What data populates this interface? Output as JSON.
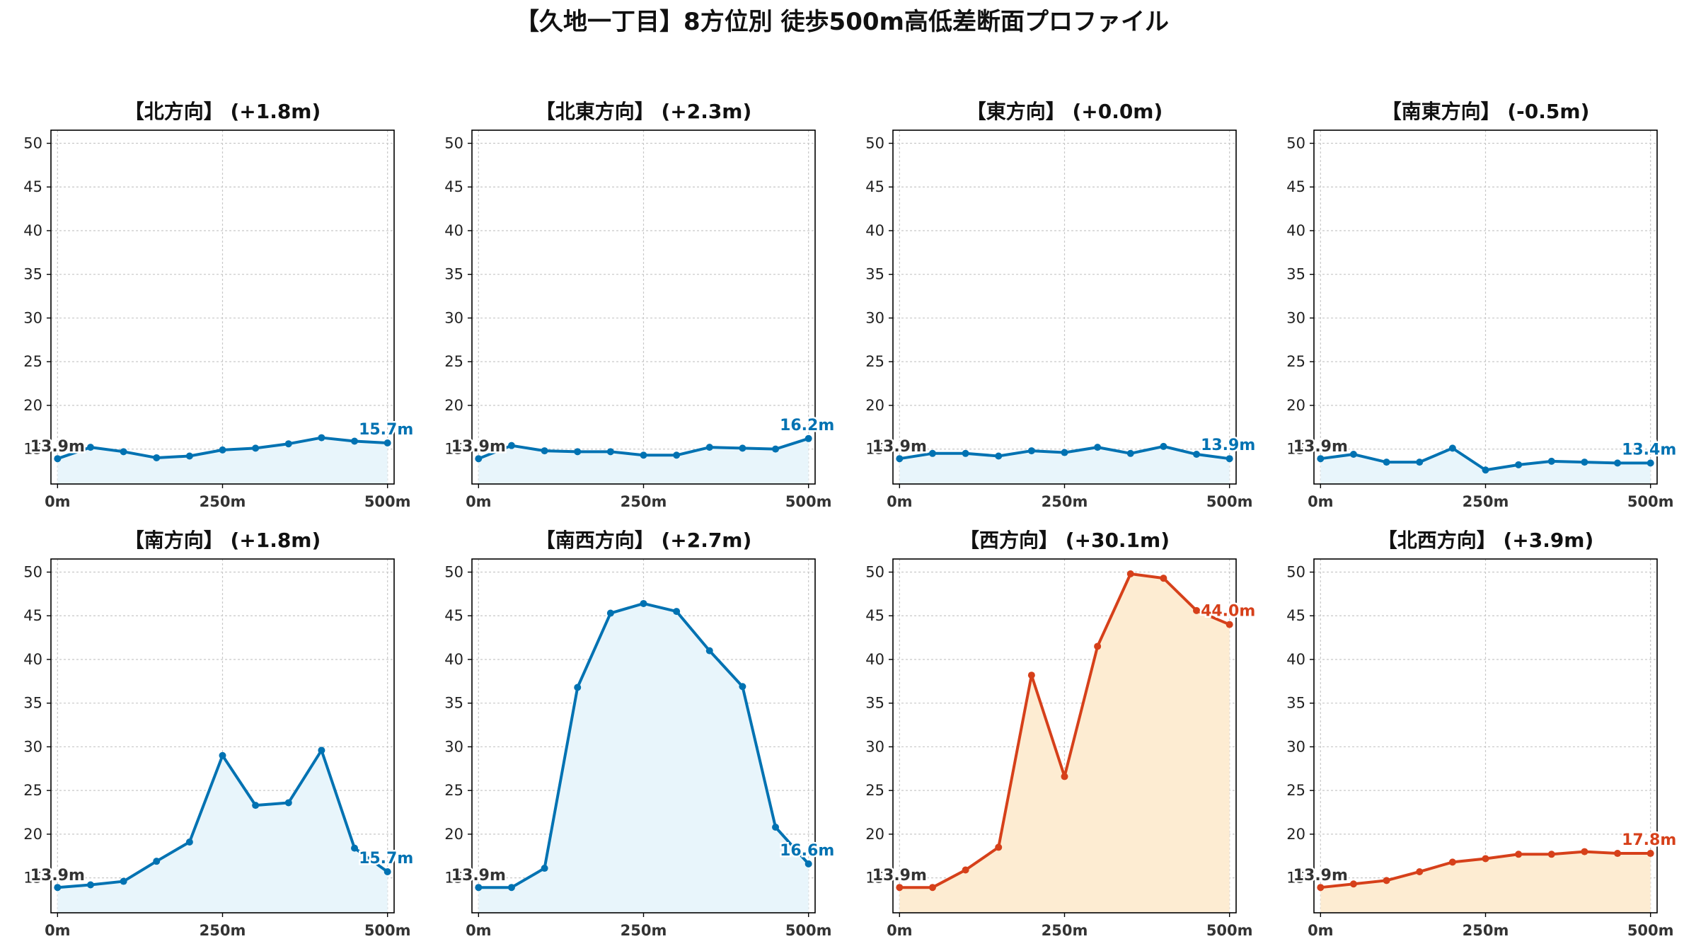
{
  "title": "【久地一丁目】8方位別 徒歩500m高低差断面プロファイル",
  "colors": {
    "blue": "#0072b2",
    "blue_fill": "#e8f5fb",
    "red": "#d6401a",
    "red_fill": "#fdecd2",
    "axis": "#000000",
    "grid": "#c8c8c8",
    "start_label": "#333333"
  },
  "chart_data": [
    {
      "type": "area",
      "title": "【北方向】 (+1.8m)",
      "color": "blue",
      "x": [
        0,
        50,
        100,
        150,
        200,
        250,
        300,
        350,
        400,
        450,
        500
      ],
      "xticks": [
        0,
        250,
        500
      ],
      "xtick_labels": [
        "0m",
        "250m",
        "500m"
      ],
      "xlim": [
        -10,
        510
      ],
      "yticks": [
        15,
        20,
        25,
        30,
        35,
        40,
        45,
        50
      ],
      "ytick_labels": [
        "15",
        "20",
        "25",
        "30",
        "35",
        "40",
        "45",
        "50"
      ],
      "ylim": [
        11,
        51.5
      ],
      "values": [
        13.9,
        15.2,
        14.7,
        14.0,
        14.2,
        14.9,
        15.1,
        15.6,
        16.3,
        15.9,
        15.7
      ],
      "start_label": "13.9m",
      "end_label": "15.7m",
      "grid": true
    },
    {
      "type": "area",
      "title": "【北東方向】 (+2.3m)",
      "color": "blue",
      "x": [
        0,
        50,
        100,
        150,
        200,
        250,
        300,
        350,
        400,
        450,
        500
      ],
      "xticks": [
        0,
        250,
        500
      ],
      "xtick_labels": [
        "0m",
        "250m",
        "500m"
      ],
      "xlim": [
        -10,
        510
      ],
      "yticks": [
        15,
        20,
        25,
        30,
        35,
        40,
        45,
        50
      ],
      "ytick_labels": [
        "15",
        "20",
        "25",
        "30",
        "35",
        "40",
        "45",
        "50"
      ],
      "ylim": [
        11,
        51.5
      ],
      "values": [
        13.9,
        15.4,
        14.8,
        14.7,
        14.7,
        14.3,
        14.3,
        15.2,
        15.1,
        15.0,
        16.2
      ],
      "start_label": "13.9m",
      "end_label": "16.2m",
      "grid": true
    },
    {
      "type": "area",
      "title": "【東方向】 (+0.0m)",
      "color": "blue",
      "x": [
        0,
        50,
        100,
        150,
        200,
        250,
        300,
        350,
        400,
        450,
        500
      ],
      "xticks": [
        0,
        250,
        500
      ],
      "xtick_labels": [
        "0m",
        "250m",
        "500m"
      ],
      "xlim": [
        -10,
        510
      ],
      "yticks": [
        15,
        20,
        25,
        30,
        35,
        40,
        45,
        50
      ],
      "ytick_labels": [
        "15",
        "20",
        "25",
        "30",
        "35",
        "40",
        "45",
        "50"
      ],
      "ylim": [
        11,
        51.5
      ],
      "values": [
        13.9,
        14.5,
        14.5,
        14.2,
        14.8,
        14.6,
        15.2,
        14.5,
        15.3,
        14.4,
        13.9
      ],
      "start_label": "13.9m",
      "end_label": "13.9m",
      "grid": true
    },
    {
      "type": "area",
      "title": "【南東方向】 (-0.5m)",
      "color": "blue",
      "x": [
        0,
        50,
        100,
        150,
        200,
        250,
        300,
        350,
        400,
        450,
        500
      ],
      "xticks": [
        0,
        250,
        500
      ],
      "xtick_labels": [
        "0m",
        "250m",
        "500m"
      ],
      "xlim": [
        -10,
        510
      ],
      "yticks": [
        15,
        20,
        25,
        30,
        35,
        40,
        45,
        50
      ],
      "ytick_labels": [
        "15",
        "20",
        "25",
        "30",
        "35",
        "40",
        "45",
        "50"
      ],
      "ylim": [
        11,
        51.5
      ],
      "values": [
        13.9,
        14.4,
        13.5,
        13.5,
        15.1,
        12.6,
        13.2,
        13.6,
        13.5,
        13.4,
        13.4
      ],
      "start_label": "13.9m",
      "end_label": "13.4m",
      "grid": true
    },
    {
      "type": "area",
      "title": "【南方向】 (+1.8m)",
      "color": "blue",
      "x": [
        0,
        50,
        100,
        150,
        200,
        250,
        300,
        350,
        400,
        450,
        500
      ],
      "xticks": [
        0,
        250,
        500
      ],
      "xtick_labels": [
        "0m",
        "250m",
        "500m"
      ],
      "xlim": [
        -10,
        510
      ],
      "yticks": [
        15,
        20,
        25,
        30,
        35,
        40,
        45,
        50
      ],
      "ytick_labels": [
        "15",
        "20",
        "25",
        "30",
        "35",
        "40",
        "45",
        "50"
      ],
      "ylim": [
        11,
        51.5
      ],
      "values": [
        13.9,
        14.2,
        14.6,
        16.9,
        19.1,
        29.0,
        23.3,
        23.6,
        29.6,
        18.4,
        15.7
      ],
      "start_label": "13.9m",
      "end_label": "15.7m",
      "grid": true
    },
    {
      "type": "area",
      "title": "【南西方向】 (+2.7m)",
      "color": "blue",
      "x": [
        0,
        50,
        100,
        150,
        200,
        250,
        300,
        350,
        400,
        450,
        500
      ],
      "xticks": [
        0,
        250,
        500
      ],
      "xtick_labels": [
        "0m",
        "250m",
        "500m"
      ],
      "xlim": [
        -10,
        510
      ],
      "yticks": [
        15,
        20,
        25,
        30,
        35,
        40,
        45,
        50
      ],
      "ytick_labels": [
        "15",
        "20",
        "25",
        "30",
        "35",
        "40",
        "45",
        "50"
      ],
      "ylim": [
        11,
        51.5
      ],
      "values": [
        13.9,
        13.9,
        16.1,
        36.8,
        45.3,
        46.4,
        45.5,
        41.0,
        36.9,
        20.8,
        16.6
      ],
      "start_label": "13.9m",
      "end_label": "16.6m",
      "grid": true
    },
    {
      "type": "area",
      "title": "【西方向】 (+30.1m)",
      "color": "red",
      "x": [
        0,
        50,
        100,
        150,
        200,
        250,
        300,
        350,
        400,
        450,
        500
      ],
      "xticks": [
        0,
        250,
        500
      ],
      "xtick_labels": [
        "0m",
        "250m",
        "500m"
      ],
      "xlim": [
        -10,
        510
      ],
      "yticks": [
        15,
        20,
        25,
        30,
        35,
        40,
        45,
        50
      ],
      "ytick_labels": [
        "15",
        "20",
        "25",
        "30",
        "35",
        "40",
        "45",
        "50"
      ],
      "ylim": [
        11,
        51.5
      ],
      "values": [
        13.9,
        13.9,
        15.9,
        18.5,
        38.2,
        26.6,
        41.5,
        49.8,
        49.3,
        45.6,
        44.0
      ],
      "start_label": "13.9m",
      "end_label": "44.0m",
      "grid": true
    },
    {
      "type": "area",
      "title": "【北西方向】 (+3.9m)",
      "color": "red",
      "x": [
        0,
        50,
        100,
        150,
        200,
        250,
        300,
        350,
        400,
        450,
        500
      ],
      "xticks": [
        0,
        250,
        500
      ],
      "xtick_labels": [
        "0m",
        "250m",
        "500m"
      ],
      "xlim": [
        -10,
        510
      ],
      "yticks": [
        15,
        20,
        25,
        30,
        35,
        40,
        45,
        50
      ],
      "ytick_labels": [
        "15",
        "20",
        "25",
        "30",
        "35",
        "40",
        "45",
        "50"
      ],
      "ylim": [
        11,
        51.5
      ],
      "values": [
        13.9,
        14.3,
        14.7,
        15.7,
        16.8,
        17.2,
        17.7,
        17.7,
        18.0,
        17.8,
        17.8
      ],
      "start_label": "13.9m",
      "end_label": "17.8m",
      "grid": true
    }
  ]
}
